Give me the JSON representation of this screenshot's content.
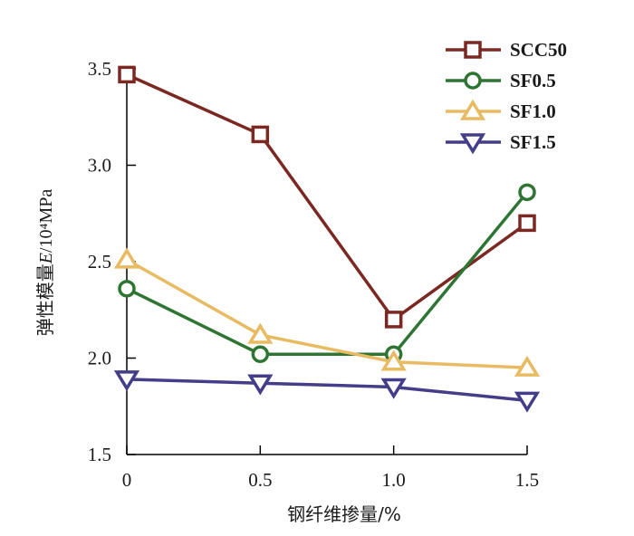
{
  "chart_data": {
    "type": "line",
    "title": "",
    "xlabel": "钢纤维掺量/%",
    "ylabel_prefix": "弹性模量",
    "ylabel_var": "E",
    "ylabel_unit": "/10⁴MPa",
    "x": [
      0,
      0.5,
      1.0,
      1.5
    ],
    "x_tick_labels": [
      "0",
      "0.5",
      "1.0",
      "1.5"
    ],
    "xlim": [
      0,
      1.5
    ],
    "ylim": [
      1.5,
      3.5
    ],
    "y_ticks": [
      1.5,
      2.0,
      2.5,
      3.0,
      3.5
    ],
    "y_tick_labels": [
      "1.5",
      "2.0",
      "2.5",
      "3.0",
      "3.5"
    ],
    "grid": false,
    "legend_position": "top-right",
    "series": [
      {
        "name": "SCC50",
        "color": "#7b2823",
        "marker": "square",
        "values": [
          3.47,
          3.16,
          2.2,
          2.7
        ]
      },
      {
        "name": "SF0.5",
        "color": "#2e7533",
        "marker": "circle",
        "values": [
          2.36,
          2.02,
          2.02,
          2.86
        ]
      },
      {
        "name": "SF1.0",
        "color": "#e8bb63",
        "marker": "triangle-up",
        "values": [
          2.51,
          2.12,
          1.98,
          1.95
        ]
      },
      {
        "name": "SF1.5",
        "color": "#443d8a",
        "marker": "triangle-down",
        "values": [
          1.89,
          1.87,
          1.85,
          1.78
        ]
      }
    ]
  }
}
